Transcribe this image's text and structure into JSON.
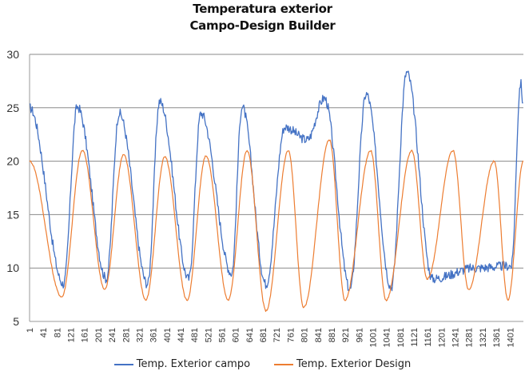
{
  "chart_data": {
    "type": "line",
    "title": [
      "Temperatura exterior",
      "Campo-Design Builder"
    ],
    "xlabel": "",
    "ylabel": "",
    "ylim": [
      5,
      30
    ],
    "yticks": [
      "30",
      "25",
      "20",
      "15",
      "10",
      "5"
    ],
    "ytick_values": [
      30,
      25,
      20,
      15,
      10,
      5
    ],
    "xlim": [
      1,
      1440
    ],
    "xticks": [
      "1",
      "41",
      "81",
      "121",
      "161",
      "201",
      "241",
      "281",
      "321",
      "361",
      "401",
      "441",
      "481",
      "521",
      "561",
      "601",
      "641",
      "681",
      "721",
      "761",
      "801",
      "841",
      "881",
      "921",
      "961",
      "1001",
      "1041",
      "1081",
      "1121",
      "1161",
      "1201",
      "1241",
      "1281",
      "1321",
      "1361",
      "1401"
    ],
    "grid": "horizontal",
    "legend_position": "bottom",
    "period": 120,
    "series": [
      {
        "name": "Temp. Exterior campo",
        "color": "#4472C4",
        "start_value": 25.0,
        "daily_peaks_x": [
          140,
          262,
          380,
          500,
          620,
          745,
          860,
          982,
          1100,
          1432
        ],
        "daily_peaks": [
          25.1,
          24.5,
          25.6,
          24.5,
          25.1,
          23.2,
          25.9,
          26.3,
          28.3,
          27.3
        ],
        "daily_troughs_x": [
          100,
          225,
          345,
          465,
          590,
          690,
          810,
          935,
          1055,
          1175,
          1300,
          1405
        ],
        "daily_troughs": [
          8.5,
          9.0,
          8.5,
          9.0,
          9.5,
          8.5,
          22.0,
          8.0,
          8.2,
          9.0,
          10.0,
          10.2
        ],
        "end_value": 25.0
      },
      {
        "name": "Temp. Exterior Design",
        "color": "#ED7D31",
        "start_value": 20.0,
        "daily_peaks_x": [
          155,
          275,
          395,
          515,
          635,
          755,
          875,
          995,
          1115,
          1235,
          1355
        ],
        "daily_peaks": [
          21.0,
          20.6,
          20.4,
          20.5,
          21.0,
          21.0,
          22.0,
          21.0,
          21.0,
          21.0,
          20.0
        ],
        "daily_troughs_x": [
          95,
          220,
          340,
          460,
          580,
          690,
          800,
          920,
          1040,
          1160,
          1280,
          1395
        ],
        "daily_troughs": [
          7.3,
          8.0,
          7.0,
          7.0,
          7.0,
          6.0,
          6.3,
          7.0,
          7.0,
          9.0,
          8.0,
          7.0
        ],
        "end_value": 20.0
      }
    ]
  }
}
